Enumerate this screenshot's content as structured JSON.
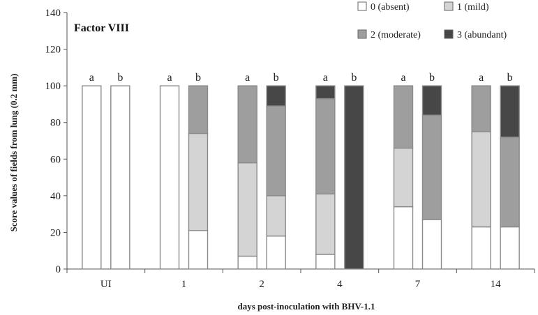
{
  "chart_data": {
    "type": "bar",
    "stacked": true,
    "title": "Factor VIII",
    "xlabel": "days post-inoculation with BHV-1.1",
    "ylabel": "Score values of fields from lung  (0.2 mm)",
    "ylim": [
      0,
      140
    ],
    "yticks": [
      0,
      20,
      40,
      60,
      80,
      100,
      120,
      140
    ],
    "categories": [
      "UI",
      "1",
      "2",
      "4",
      "7",
      "14"
    ],
    "bar_labels": [
      "a",
      "b"
    ],
    "grid": false,
    "legend_position": "top-right",
    "series": [
      {
        "name": "0 (absent)",
        "color": "#ffffff"
      },
      {
        "name": "1 (mild)",
        "color": "#d4d4d4"
      },
      {
        "name": "2 (moderate)",
        "color": "#9e9e9e"
      },
      {
        "name": "3 (abundant)",
        "color": "#474747"
      }
    ],
    "bars": [
      {
        "category": "UI",
        "label": "a",
        "values": [
          100,
          0,
          0,
          0
        ]
      },
      {
        "category": "UI",
        "label": "b",
        "values": [
          100,
          0,
          0,
          0
        ]
      },
      {
        "category": "1",
        "label": "a",
        "values": [
          100,
          0,
          0,
          0
        ]
      },
      {
        "category": "1",
        "label": "b",
        "values": [
          21,
          53,
          26,
          0
        ]
      },
      {
        "category": "2",
        "label": "a",
        "values": [
          7,
          51,
          42,
          0
        ]
      },
      {
        "category": "2",
        "label": "b",
        "values": [
          18,
          22,
          49,
          11
        ]
      },
      {
        "category": "4",
        "label": "a",
        "values": [
          8,
          33,
          52,
          7
        ]
      },
      {
        "category": "4",
        "label": "b",
        "values": [
          0,
          0,
          0,
          100
        ]
      },
      {
        "category": "7",
        "label": "a",
        "values": [
          34,
          32,
          34,
          0
        ]
      },
      {
        "category": "7",
        "label": "b",
        "values": [
          27,
          0,
          57,
          16
        ]
      },
      {
        "category": "14",
        "label": "a",
        "values": [
          23,
          52,
          25,
          0
        ]
      },
      {
        "category": "14",
        "label": "b",
        "values": [
          23,
          0,
          49,
          28
        ]
      }
    ]
  }
}
